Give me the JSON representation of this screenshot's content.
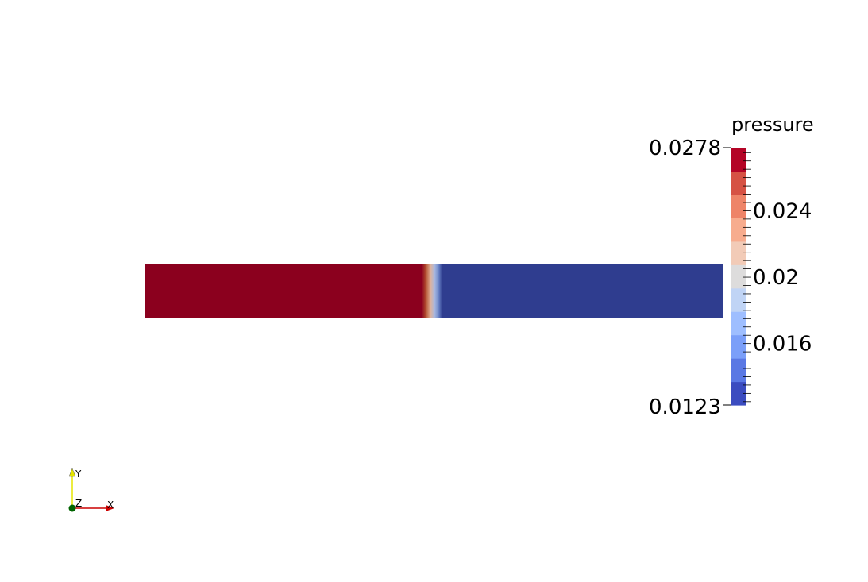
{
  "colorbar": {
    "title": "pressure",
    "range": [
      0.0123,
      0.0278
    ],
    "max_label": "0.0278",
    "min_label": "0.0123",
    "labels": [
      {
        "value": 0.024,
        "text": "0.024"
      },
      {
        "value": 0.02,
        "text": "0.02"
      },
      {
        "value": 0.016,
        "text": "0.016"
      }
    ],
    "colors": [
      "#3b4cc0",
      "#5a78e4",
      "#7b9ff9",
      "#9ebeff",
      "#c0d4f5",
      "#dddcdc",
      "#f2cbb7",
      "#f7ac8e",
      "#ee8468",
      "#d65244",
      "#b40426"
    ]
  },
  "domain_field": {
    "left_color": "#8b001e",
    "right_color": "#2f3d8f",
    "interface_fraction": 0.5
  },
  "orientation_axes": {
    "x_label": "X",
    "y_label": "Y",
    "z_label": "Z",
    "x_color": "#cc0000",
    "y_color": "#e6e600",
    "z_color": "#006400"
  }
}
